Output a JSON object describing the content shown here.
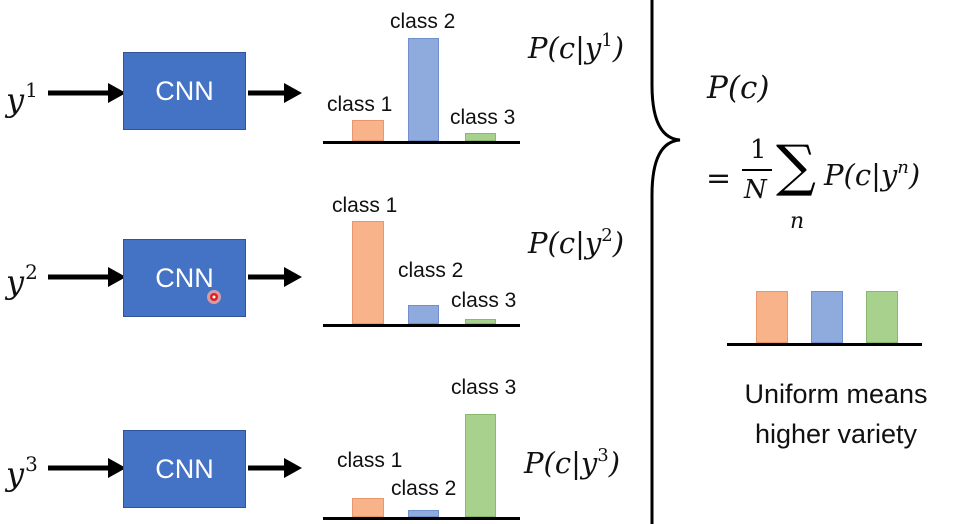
{
  "rows": [
    {
      "input_var": "y",
      "input_sup": "1",
      "cnn_label": "CNN",
      "class_labels": [
        "class 1",
        "class 2",
        "class 3"
      ],
      "values": [
        0.2,
        1.0,
        0.08
      ],
      "prob_prefix": "P(c|y",
      "prob_sup": "1",
      "prob_suffix": ")"
    },
    {
      "input_var": "y",
      "input_sup": "2",
      "cnn_label": "CNN",
      "class_labels": [
        "class 1",
        "class 2",
        "class 3"
      ],
      "values": [
        1.0,
        0.18,
        0.05
      ],
      "prob_prefix": "P(c|y",
      "prob_sup": "2",
      "prob_suffix": ")"
    },
    {
      "input_var": "y",
      "input_sup": "3",
      "cnn_label": "CNN",
      "class_labels": [
        "class 1",
        "class 2",
        "class 3"
      ],
      "values": [
        0.18,
        0.07,
        1.0
      ],
      "prob_prefix": "P(c|y",
      "prob_sup": "3",
      "prob_suffix": ")"
    }
  ],
  "summary": {
    "pc_label": "P(c)",
    "equals": "=",
    "frac_num": "1",
    "frac_den": "N",
    "sum_symbol": "∑",
    "sum_index": "n",
    "sum_term_prefix": "P(c|y",
    "sum_term_sup": "n",
    "sum_term_suffix": ")",
    "uniform_values": [
      1.0,
      1.0,
      1.0
    ],
    "caption_line1": "Uniform means",
    "caption_line2": "higher variety"
  },
  "colors": {
    "class1": "#f8b38b",
    "class2": "#8faadc",
    "class3": "#a9d18e",
    "cnn_box": "#4472c4"
  }
}
